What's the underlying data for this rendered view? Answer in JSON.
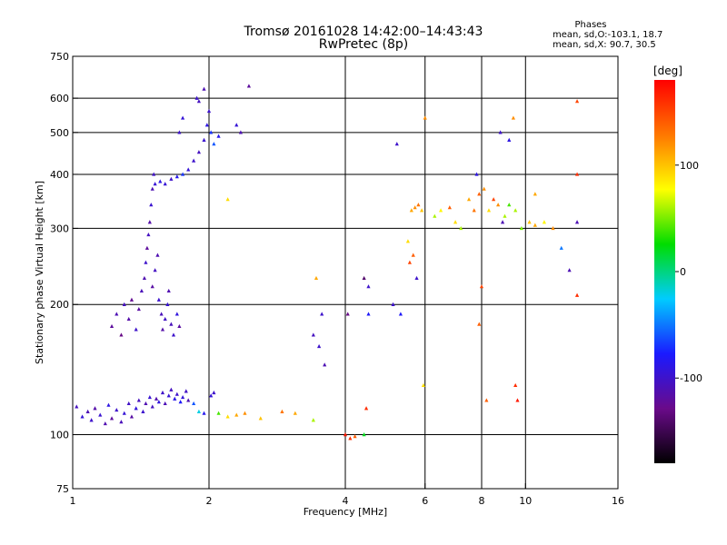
{
  "title": {
    "line1": "Tromsø 20161028 14:42:00–14:43:43",
    "line2": "RwPretec (8p)"
  },
  "stats": {
    "header": "Phases",
    "line1": "mean, sd,O:-103.1, 18.7",
    "line2": "mean, sd,X:  90.7, 30.5"
  },
  "colorbar": {
    "label": "[deg]",
    "ticks": [
      {
        "value": 100,
        "label": "100"
      },
      {
        "value": 0,
        "label": "0"
      },
      {
        "value": -100,
        "label": "-100"
      }
    ],
    "range": [
      -180,
      180
    ],
    "colors": [
      "#000000",
      "#6a0a8a",
      "#1a1aff",
      "#00ccff",
      "#00dd00",
      "#ffff00",
      "#ff7700",
      "#ff0000"
    ]
  },
  "chart_data": {
    "type": "scatter",
    "xlabel": "Frequency [MHz]",
    "ylabel": "Stationary phase Virtual Height [km]",
    "x_scale": "log",
    "y_scale": "log",
    "xlim": [
      1,
      16
    ],
    "ylim": [
      75,
      750
    ],
    "xticks": [
      1,
      2,
      4,
      6,
      8,
      10,
      16
    ],
    "yticks": [
      75,
      100,
      200,
      300,
      400,
      500,
      600,
      750
    ],
    "grid_x": [
      2,
      4,
      6,
      8,
      10
    ],
    "grid_y": [
      100,
      200,
      300,
      400,
      500,
      600
    ],
    "series": [
      {
        "points": [
          [
            1.02,
            116,
            -105
          ],
          [
            1.05,
            110,
            -95
          ],
          [
            1.08,
            113,
            -110
          ],
          [
            1.1,
            108,
            -100
          ],
          [
            1.12,
            115,
            -115
          ],
          [
            1.15,
            111,
            -98
          ],
          [
            1.18,
            106,
            -112
          ],
          [
            1.2,
            117,
            -90
          ],
          [
            1.22,
            109,
            -120
          ],
          [
            1.25,
            114,
            -100
          ],
          [
            1.28,
            107,
            -108
          ],
          [
            1.3,
            112,
            -95
          ],
          [
            1.33,
            118,
            -102
          ],
          [
            1.35,
            110,
            -117
          ],
          [
            1.38,
            115,
            -93
          ],
          [
            1.4,
            120,
            -106
          ],
          [
            1.43,
            113,
            -99
          ],
          [
            1.45,
            118,
            -111
          ],
          [
            1.48,
            122,
            -97
          ],
          [
            1.5,
            116,
            -104
          ],
          [
            1.53,
            121,
            -113
          ],
          [
            1.55,
            119,
            -92
          ],
          [
            1.58,
            125,
            -101
          ],
          [
            1.6,
            118,
            -109
          ],
          [
            1.63,
            123,
            -96
          ],
          [
            1.65,
            127,
            -105
          ],
          [
            1.68,
            121,
            -88
          ],
          [
            1.7,
            124,
            -100
          ],
          [
            1.73,
            119,
            -80
          ],
          [
            1.75,
            122,
            -94
          ],
          [
            1.78,
            126,
            -103
          ],
          [
            1.8,
            120,
            -110
          ],
          [
            1.85,
            118,
            -60
          ],
          [
            1.9,
            113,
            -20
          ],
          [
            1.95,
            112,
            -85
          ],
          [
            2.02,
            123,
            -95
          ],
          [
            2.05,
            125,
            -100
          ],
          [
            2.1,
            112,
            40
          ],
          [
            2.2,
            110,
            90
          ],
          [
            2.3,
            111,
            110
          ],
          [
            2.4,
            112,
            120
          ],
          [
            2.6,
            109,
            100
          ],
          [
            2.9,
            113,
            130
          ],
          [
            3.1,
            112,
            110
          ],
          [
            3.4,
            108,
            60
          ],
          [
            1.22,
            178,
            -120
          ],
          [
            1.25,
            190,
            -110
          ],
          [
            1.28,
            170,
            -130
          ],
          [
            1.3,
            200,
            -105
          ],
          [
            1.33,
            185,
            -115
          ],
          [
            1.35,
            205,
            -125
          ],
          [
            1.38,
            175,
            -100
          ],
          [
            1.4,
            195,
            -118
          ],
          [
            1.42,
            215,
            -108
          ],
          [
            1.44,
            230,
            -112
          ],
          [
            1.45,
            250,
            -100
          ],
          [
            1.46,
            270,
            -120
          ],
          [
            1.47,
            290,
            -105
          ],
          [
            1.48,
            310,
            -115
          ],
          [
            1.49,
            340,
            -98
          ],
          [
            1.5,
            370,
            -110
          ],
          [
            1.51,
            400,
            -102
          ],
          [
            1.52,
            380,
            -95
          ],
          [
            1.5,
            220,
            -117
          ],
          [
            1.52,
            240,
            -104
          ],
          [
            1.54,
            260,
            -111
          ],
          [
            1.55,
            205,
            -99
          ],
          [
            1.57,
            190,
            -108
          ],
          [
            1.58,
            175,
            -115
          ],
          [
            1.6,
            185,
            -103
          ],
          [
            1.62,
            200,
            -96
          ],
          [
            1.63,
            215,
            -112
          ],
          [
            1.65,
            180,
            -107
          ],
          [
            1.67,
            170,
            -100
          ],
          [
            1.7,
            190,
            -92
          ],
          [
            1.72,
            178,
            -118
          ],
          [
            1.56,
            385,
            -90
          ],
          [
            1.6,
            380,
            -95
          ],
          [
            1.65,
            390,
            -100
          ],
          [
            1.7,
            395,
            -85
          ],
          [
            1.75,
            400,
            -70
          ],
          [
            1.8,
            410,
            -95
          ],
          [
            1.85,
            430,
            -100
          ],
          [
            1.9,
            450,
            -105
          ],
          [
            1.95,
            480,
            -98
          ],
          [
            1.98,
            520,
            -90
          ],
          [
            2.0,
            560,
            -100
          ],
          [
            2.02,
            500,
            -70
          ],
          [
            2.05,
            470,
            -60
          ],
          [
            2.1,
            490,
            -85
          ],
          [
            1.72,
            500,
            -100
          ],
          [
            1.75,
            540,
            -95
          ],
          [
            1.9,
            590,
            -105
          ],
          [
            1.95,
            630,
            -110
          ],
          [
            1.88,
            600,
            -100
          ],
          [
            2.35,
            500,
            -110
          ],
          [
            2.3,
            520,
            -95
          ],
          [
            2.45,
            640,
            -120
          ],
          [
            2.2,
            350,
            90
          ],
          [
            3.4,
            170,
            -105
          ],
          [
            3.5,
            160,
            -100
          ],
          [
            3.6,
            145,
            -110
          ],
          [
            3.55,
            190,
            -100
          ],
          [
            3.45,
            230,
            110
          ],
          [
            4.0,
            100,
            170
          ],
          [
            4.1,
            98,
            160
          ],
          [
            4.2,
            99,
            140
          ],
          [
            4.4,
            100,
            20
          ],
          [
            4.05,
            190,
            -130
          ],
          [
            4.4,
            230,
            -140
          ],
          [
            4.5,
            190,
            -80
          ],
          [
            4.45,
            115,
            160
          ],
          [
            4.5,
            220,
            -100
          ],
          [
            5.1,
            200,
            -100
          ],
          [
            5.2,
            470,
            -100
          ],
          [
            5.3,
            190,
            -80
          ],
          [
            5.5,
            280,
            90
          ],
          [
            5.55,
            250,
            150
          ],
          [
            5.6,
            330,
            110
          ],
          [
            5.7,
            335,
            120
          ],
          [
            5.8,
            340,
            130
          ],
          [
            5.9,
            330,
            100
          ],
          [
            6.0,
            540,
            120
          ],
          [
            5.65,
            260,
            140
          ],
          [
            5.75,
            230,
            -100
          ],
          [
            5.95,
            130,
            90
          ],
          [
            6.3,
            320,
            60
          ],
          [
            6.5,
            330,
            80
          ],
          [
            6.8,
            335,
            140
          ],
          [
            7.0,
            310,
            90
          ],
          [
            7.2,
            300,
            60
          ],
          [
            7.5,
            350,
            110
          ],
          [
            7.7,
            330,
            130
          ],
          [
            7.9,
            360,
            140
          ],
          [
            8.1,
            370,
            120
          ],
          [
            8.3,
            330,
            90
          ],
          [
            8.5,
            350,
            150
          ],
          [
            8.7,
            340,
            120
          ],
          [
            8.9,
            310,
            -110
          ],
          [
            9.0,
            320,
            60
          ],
          [
            9.2,
            340,
            40
          ],
          [
            9.5,
            330,
            60
          ],
          [
            9.8,
            300,
            50
          ],
          [
            10.2,
            310,
            100
          ],
          [
            10.5,
            305,
            110
          ],
          [
            11.0,
            310,
            80
          ],
          [
            11.5,
            300,
            120
          ],
          [
            12.0,
            270,
            -50
          ],
          [
            12.5,
            240,
            -110
          ],
          [
            13.0,
            310,
            -110
          ],
          [
            13.0,
            400,
            160
          ],
          [
            13.0,
            590,
            150
          ],
          [
            13.0,
            210,
            160
          ],
          [
            7.9,
            180,
            140
          ],
          [
            8.0,
            220,
            150
          ],
          [
            8.2,
            120,
            140
          ],
          [
            8.8,
            500,
            -100
          ],
          [
            9.2,
            480,
            -90
          ],
          [
            9.4,
            540,
            120
          ],
          [
            9.5,
            130,
            160
          ],
          [
            9.6,
            120,
            170
          ],
          [
            10.5,
            360,
            110
          ],
          [
            7.8,
            400,
            -90
          ]
        ]
      }
    ]
  }
}
